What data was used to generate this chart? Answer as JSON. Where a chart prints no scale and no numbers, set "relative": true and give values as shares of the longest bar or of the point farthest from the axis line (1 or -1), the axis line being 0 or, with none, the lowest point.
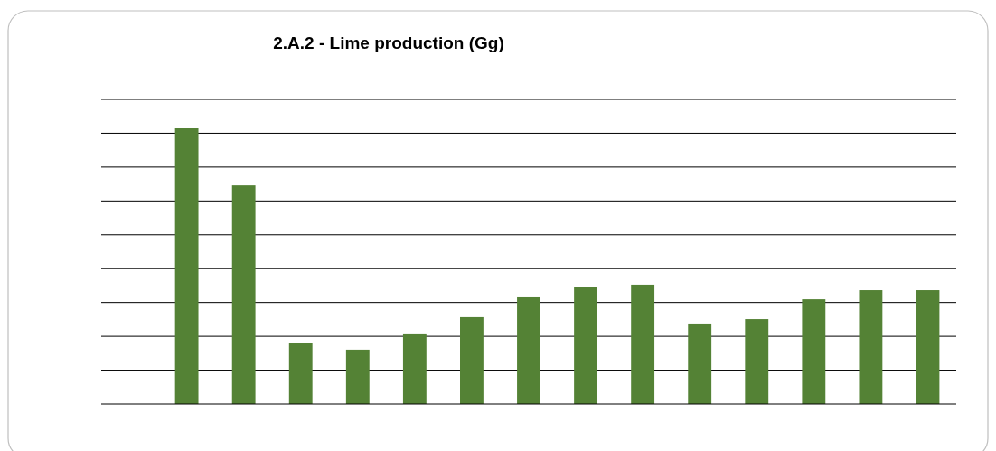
{
  "chart_data": {
    "type": "bar",
    "title": "2.A.2 - Lime production (Gg)",
    "relative": true,
    "grid": "y",
    "color": "#548235",
    "categories": [
      null,
      null,
      null,
      null,
      null,
      null,
      null,
      null,
      null,
      null,
      null,
      null,
      null,
      null
    ],
    "values": [
      1,
      0.793,
      0.22,
      0.197,
      0.256,
      0.315,
      0.387,
      0.423,
      0.433,
      0.292,
      0.308,
      0.38,
      0.413,
      0.413
    ]
  }
}
